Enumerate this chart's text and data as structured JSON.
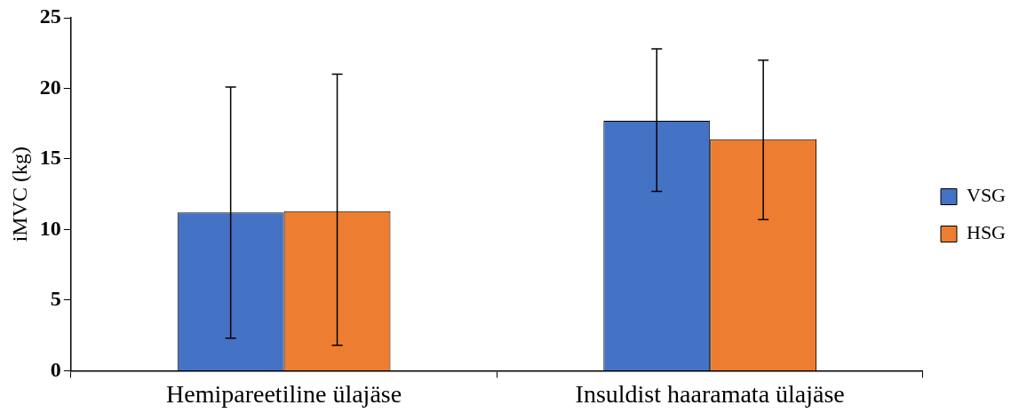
{
  "chart_data": {
    "type": "bar",
    "ylabel": "iMVC (kg)",
    "categories": [
      "Hemipareetiline ülajäse",
      "Insuldist haaramata ülajäse"
    ],
    "series": [
      {
        "name": "VSG",
        "color": "#4472c4",
        "values": [
          11.2,
          17.7
        ],
        "errors": [
          [
            2.3,
            20.1
          ],
          [
            12.7,
            22.8
          ]
        ]
      },
      {
        "name": "HSG",
        "color": "#ed7d31",
        "values": [
          11.3,
          16.4
        ],
        "errors": [
          [
            1.8,
            21.0
          ],
          [
            10.7,
            22.0
          ]
        ]
      }
    ],
    "ylim": [
      0,
      25
    ],
    "yticks": [
      0,
      5,
      10,
      15,
      20,
      25
    ],
    "grid": false,
    "legend": "right"
  }
}
